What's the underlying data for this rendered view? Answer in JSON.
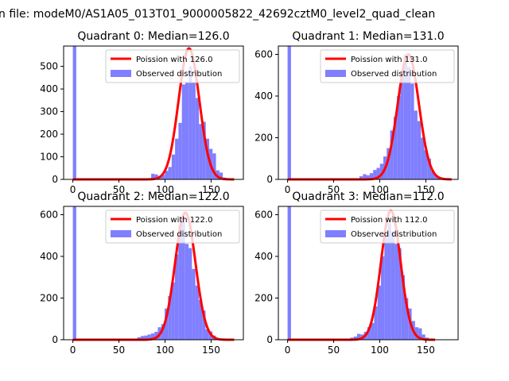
{
  "figure": {
    "suptitle": "n file: modeM0/AS1A05_013T01_9000005822_42692cztM0_level2_quad_clean"
  },
  "colors": {
    "observed": "#7f7fff",
    "poisson": "#ff0000",
    "axes": "#000000",
    "legend_border": "#cccccc"
  },
  "chart_data": [
    {
      "type": "bar",
      "title": "Quadrant 0: Median=126.0",
      "xlim": [
        -10,
        185
      ],
      "ylim": [
        0,
        590
      ],
      "xticks": [
        0,
        50,
        100,
        150
      ],
      "yticks": [
        0,
        100,
        200,
        300,
        400,
        500
      ],
      "legend": [
        "Poission with 126.0",
        "Observed distribution"
      ],
      "legend_position": "upper right",
      "median": 126,
      "bin_width": 3.7,
      "bins": [
        0,
        85,
        88.7,
        92.4,
        96.1,
        99.8,
        103.5,
        107.2,
        110.9,
        114.6,
        118.3,
        122,
        125.7,
        129.4,
        133.1,
        136.8,
        140.5,
        144.2,
        147.9,
        151.6,
        155.3,
        159,
        162.7,
        166.4,
        170.1
      ],
      "observed": [
        590,
        25,
        22,
        15,
        20,
        38,
        55,
        110,
        180,
        250,
        420,
        430,
        500,
        430,
        360,
        245,
        255,
        180,
        135,
        115,
        40,
        30,
        8,
        3,
        1
      ],
      "poisson": {
        "lambda": 126,
        "peak": 580,
        "x_range": [
          0,
          175
        ]
      }
    },
    {
      "type": "bar",
      "title": "Quadrant 1: Median=131.0",
      "xlim": [
        -10,
        185
      ],
      "ylim": [
        0,
        640
      ],
      "xticks": [
        0,
        50,
        100,
        150
      ],
      "yticks": [
        0,
        200,
        400,
        600
      ],
      "legend": [
        "Poission with 131.0",
        "Observed distribution"
      ],
      "legend_position": "upper right",
      "median": 131,
      "bin_width": 3.7,
      "bins": [
        0,
        78,
        81.7,
        85.4,
        89.1,
        92.8,
        96.5,
        100.2,
        103.9,
        107.6,
        111.3,
        115,
        118.7,
        122.4,
        126.1,
        129.8,
        133.5,
        137.2,
        140.9,
        144.6,
        148.3,
        152,
        155.7,
        159.4,
        163.1,
        166.8
      ],
      "observed": [
        640,
        15,
        25,
        20,
        30,
        45,
        55,
        75,
        110,
        150,
        235,
        300,
        400,
        500,
        600,
        540,
        460,
        330,
        280,
        200,
        140,
        100,
        40,
        20,
        8,
        2
      ],
      "poisson": {
        "lambda": 131,
        "peak": 600,
        "x_range": [
          0,
          178
        ]
      }
    },
    {
      "type": "bar",
      "title": "Quadrant 2: Median=122.0",
      "xlim": [
        -10,
        185
      ],
      "ylim": [
        0,
        640
      ],
      "xticks": [
        0,
        50,
        100,
        150
      ],
      "yticks": [
        0,
        200,
        400,
        600
      ],
      "legend": [
        "Poission with 122.0",
        "Observed distribution"
      ],
      "legend_position": "upper right",
      "median": 122,
      "bin_width": 3.7,
      "bins": [
        0,
        70,
        73.7,
        77.4,
        81.1,
        84.8,
        88.5,
        92.2,
        95.9,
        99.6,
        103.3,
        107,
        110.7,
        114.4,
        118.1,
        121.8,
        125.5,
        129.2,
        132.9,
        136.6,
        140.3,
        144,
        147.7,
        151.4,
        155.1,
        158.8
      ],
      "observed": [
        640,
        12,
        18,
        20,
        25,
        30,
        38,
        60,
        75,
        150,
        210,
        275,
        410,
        550,
        590,
        460,
        440,
        340,
        260,
        190,
        140,
        50,
        40,
        20,
        5,
        2
      ],
      "poisson": {
        "lambda": 122,
        "peak": 610,
        "x_range": [
          0,
          175
        ]
      }
    },
    {
      "type": "bar",
      "title": "Quadrant 3: Median=112.0",
      "xlim": [
        -10,
        185
      ],
      "ylim": [
        0,
        640
      ],
      "xticks": [
        0,
        50,
        100,
        150
      ],
      "yticks": [
        0,
        200,
        400,
        600
      ],
      "legend": [
        "Poission with 112.0",
        "Observed distribution"
      ],
      "legend_position": "upper right",
      "median": 112,
      "bin_width": 3.7,
      "bins": [
        0,
        68,
        71.7,
        75.4,
        79.1,
        82.8,
        86.5,
        90.2,
        93.9,
        97.6,
        101.3,
        105,
        108.7,
        112.4,
        116.1,
        119.8,
        123.5,
        127.2,
        130.9,
        134.6,
        138.3,
        142,
        145.7,
        149.4,
        153.1
      ],
      "observed": [
        640,
        10,
        15,
        28,
        25,
        38,
        60,
        80,
        160,
        260,
        400,
        500,
        560,
        520,
        460,
        440,
        310,
        200,
        150,
        90,
        60,
        55,
        25,
        10,
        3
      ],
      "poisson": {
        "lambda": 112,
        "peak": 620,
        "x_range": [
          0,
          160
        ]
      }
    }
  ]
}
